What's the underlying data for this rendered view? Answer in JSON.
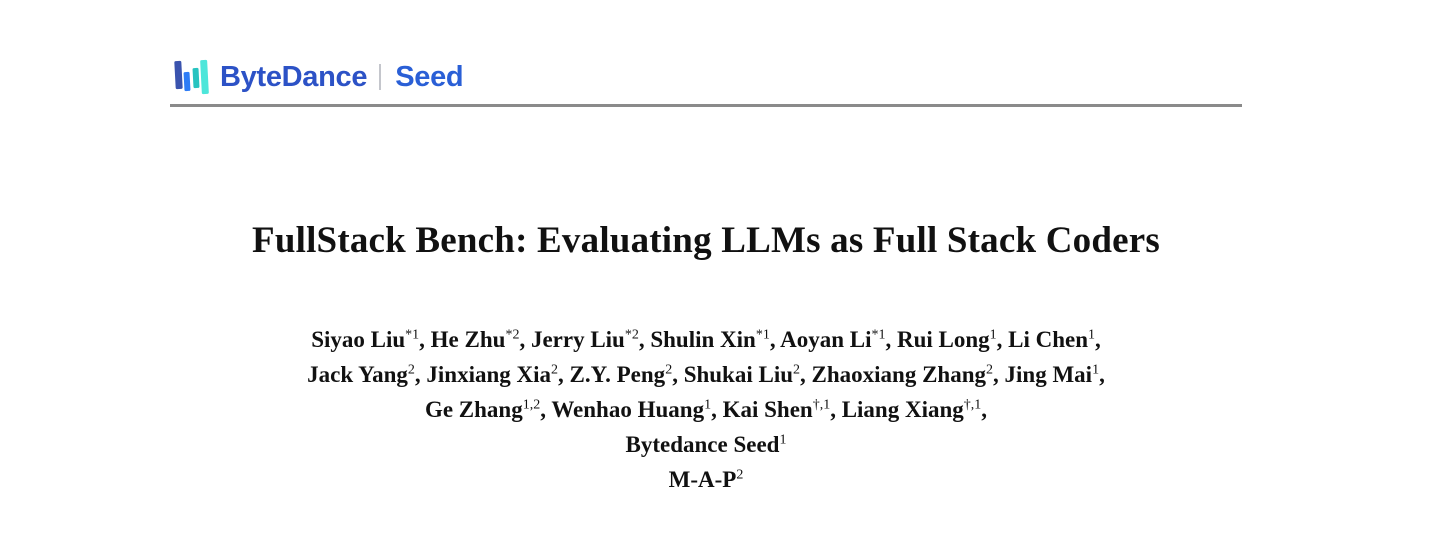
{
  "brand": {
    "company": "ByteDance",
    "product": "Seed",
    "colors": {
      "company_text": "#2c52c6",
      "product_text": "#2a5fd6",
      "divider": "#c4c6cc",
      "logo_bar1": "#3a53ae",
      "logo_bar2": "#2e7cf6",
      "logo_bar3": "#27c3c0",
      "logo_bar4": "#4de6da",
      "rule": "#8a8a8a"
    }
  },
  "paper": {
    "title": "FullStack Bench: Evaluating LLMs as Full Stack Coders"
  },
  "authors": {
    "lines": [
      {
        "people": [
          {
            "name": "Siyao Liu",
            "sup": "*1"
          },
          {
            "name": "He Zhu",
            "sup": "*2"
          },
          {
            "name": "Jerry Liu",
            "sup": "*2"
          },
          {
            "name": "Shulin Xin",
            "sup": "*1"
          },
          {
            "name": "Aoyan Li",
            "sup": "*1"
          },
          {
            "name": "Rui Long",
            "sup": "1"
          },
          {
            "name": "Li Chen",
            "sup": "1"
          }
        ],
        "trailing": ","
      },
      {
        "people": [
          {
            "name": "Jack Yang",
            "sup": "2"
          },
          {
            "name": "Jinxiang Xia",
            "sup": "2"
          },
          {
            "name": "Z.Y. Peng",
            "sup": "2"
          },
          {
            "name": "Shukai Liu",
            "sup": "2"
          },
          {
            "name": "Zhaoxiang Zhang",
            "sup": "2"
          },
          {
            "name": "Jing Mai",
            "sup": "1"
          }
        ],
        "trailing": ","
      },
      {
        "people": [
          {
            "name": "Ge Zhang",
            "sup": "1,2"
          },
          {
            "name": "Wenhao Huang",
            "sup": "1"
          },
          {
            "name": "Kai Shen",
            "sup": "†,1"
          },
          {
            "name": "Liang Xiang",
            "sup": "†,1"
          }
        ],
        "trailing": ","
      }
    ],
    "affiliations": [
      {
        "name": "Bytedance Seed",
        "sup": "1"
      },
      {
        "name": "M-A-P",
        "sup": "2"
      }
    ]
  }
}
